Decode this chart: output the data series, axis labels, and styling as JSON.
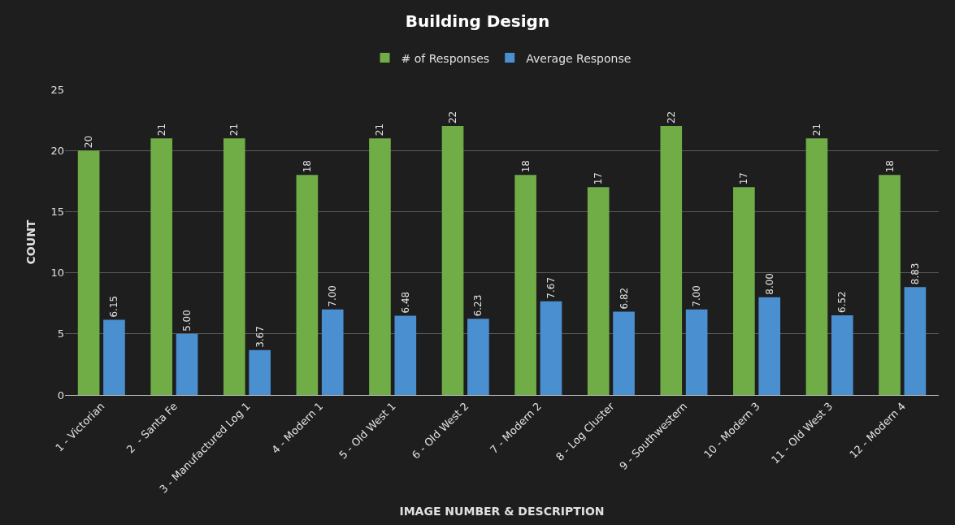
{
  "chart_data": {
    "type": "bar",
    "title": "Building Design",
    "xlabel": "IMAGE NUMBER & DESCRIPTION",
    "ylabel": "COUNT",
    "categories": [
      "1 - Victorian",
      "2  - Santa Fe",
      "3 - Manufactured Log 1",
      "4 - Modern 1",
      "5 - Old West 1",
      "6 - Old West 2",
      "7 - Modern 2",
      "8 - Log Cluster",
      "9 - Southwestern",
      "10 - Modern 3",
      "11 - Old West 3",
      "12 - Modern 4"
    ],
    "series": [
      {
        "name": "# of Responses",
        "color": "#70ad47",
        "values": [
          20,
          21,
          21,
          18,
          21,
          22,
          18,
          17,
          22,
          17,
          21,
          18
        ],
        "value_labels": [
          "20",
          "21",
          "21",
          "18",
          "21",
          "22",
          "18",
          "17",
          "22",
          "17",
          "21",
          "18"
        ]
      },
      {
        "name": "Average Response",
        "color": "#4a90d0",
        "values": [
          6.15,
          5.0,
          3.67,
          7.0,
          6.48,
          6.23,
          7.67,
          6.82,
          7.0,
          8.0,
          6.52,
          8.83
        ],
        "value_labels": [
          "6.15",
          "5.00",
          "3.67",
          "7.00",
          "6.48",
          "6.23",
          "7.67",
          "6.82",
          "7.00",
          "8.00",
          "6.52",
          "8.83"
        ]
      }
    ],
    "ylim": [
      0,
      25
    ],
    "yticks": [
      0,
      5,
      10,
      15,
      20,
      25
    ],
    "grid": "y",
    "legend": "top"
  }
}
